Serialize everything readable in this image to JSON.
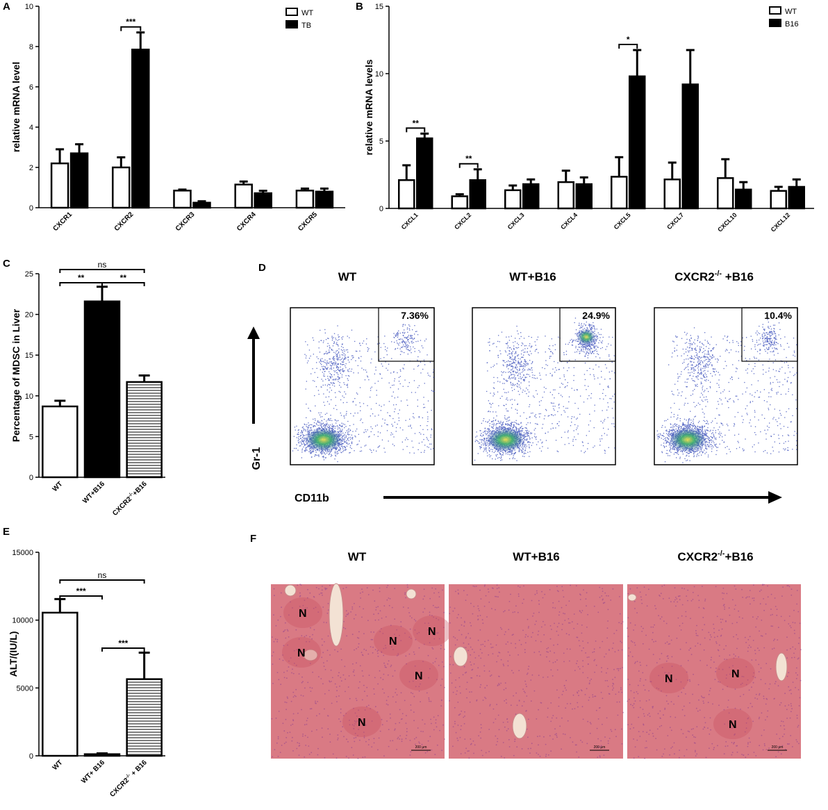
{
  "colors": {
    "open": "#ffffff",
    "filled": "#000000",
    "stroke": "#000000",
    "hist_bg": "#d97a84",
    "hist_nodule": "#c9505e",
    "flow_dot": "#2a3fb5"
  },
  "chart_data": [
    {
      "panel": "A",
      "type": "bar",
      "ylabel": "relative mRNA level",
      "ylim": [
        0,
        10
      ],
      "yticks": [
        "0",
        "2",
        "4",
        "6",
        "8",
        "10"
      ],
      "categories": [
        "CXCR1",
        "CXCR2",
        "CXCR3",
        "CXCR4",
        "CXCR5"
      ],
      "series": [
        {
          "name": "WT",
          "style": "open",
          "values": [
            2.2,
            2.0,
            0.85,
            1.15,
            0.85
          ],
          "errors": [
            0.7,
            0.5,
            0.05,
            0.15,
            0.1
          ]
        },
        {
          "name": "TB",
          "style": "filled",
          "values": [
            2.7,
            7.85,
            0.25,
            0.72,
            0.8
          ],
          "errors": [
            0.45,
            0.85,
            0.07,
            0.12,
            0.15
          ]
        }
      ],
      "significance": [
        {
          "category": 1,
          "label": "***"
        }
      ]
    },
    {
      "panel": "B",
      "type": "bar",
      "ylabel": "relative mRNA levels",
      "ylim": [
        0,
        15
      ],
      "yticks": [
        "0",
        "5",
        "10",
        "15"
      ],
      "categories": [
        "CXCL1",
        "CXCL2",
        "CXCL3",
        "CXCL4",
        "CXCL5",
        "CXCL7",
        "CXCL10",
        "CXCL12"
      ],
      "series": [
        {
          "name": "WT",
          "style": "open",
          "values": [
            2.1,
            0.9,
            1.35,
            1.95,
            2.35,
            2.15,
            2.25,
            1.3
          ],
          "errors": [
            1.1,
            0.15,
            0.35,
            0.85,
            1.45,
            1.25,
            1.4,
            0.3
          ]
        },
        {
          "name": "B16",
          "style": "filled",
          "values": [
            5.2,
            2.1,
            1.8,
            1.8,
            9.8,
            9.2,
            1.4,
            1.6
          ],
          "errors": [
            0.35,
            0.8,
            0.35,
            0.5,
            1.95,
            2.55,
            0.55,
            0.55
          ]
        }
      ],
      "significance": [
        {
          "category": 0,
          "label": "**"
        },
        {
          "category": 1,
          "label": "**"
        },
        {
          "category": 4,
          "label": "*"
        }
      ]
    },
    {
      "panel": "C",
      "type": "bar",
      "ylabel": "Percentage of MDSC in Liver",
      "ylim": [
        0,
        25
      ],
      "yticks": [
        "0",
        "5",
        "10",
        "15",
        "20",
        "25"
      ],
      "categories": [
        "WT",
        "WT+B16",
        "CXCR2-/-+B16"
      ],
      "values": [
        8.7,
        21.6,
        11.7
      ],
      "errors": [
        0.7,
        1.8,
        0.8
      ],
      "styles": [
        "open",
        "filled",
        "hatched"
      ],
      "significance": [
        {
          "from": 0,
          "to": 1,
          "label": "**"
        },
        {
          "from": 1,
          "to": 2,
          "label": "**"
        },
        {
          "from": 0,
          "to": 2,
          "label": "ns"
        }
      ]
    },
    {
      "panel": "E",
      "type": "bar",
      "ylabel": "ALT/(IU/L)",
      "ylim": [
        0,
        15000
      ],
      "yticks": [
        "0",
        "5000",
        "10000",
        "15000"
      ],
      "categories": [
        "WT",
        "WT+ B16",
        "CXCR2-/- + B16"
      ],
      "values": [
        10550,
        120,
        5650
      ],
      "errors": [
        1000,
        60,
        1950
      ],
      "styles": [
        "open",
        "open",
        "hatched"
      ],
      "significance": [
        {
          "from": 0,
          "to": 1,
          "label": "***"
        },
        {
          "from": 1,
          "to": 2,
          "label": "***"
        },
        {
          "from": 0,
          "to": 2,
          "label": "ns"
        }
      ]
    }
  ],
  "panels": {
    "A": {
      "letter": "A"
    },
    "B": {
      "letter": "B"
    },
    "C": {
      "letter": "C"
    },
    "D": {
      "letter": "D",
      "headers": [
        "WT",
        "WT+B16",
        "CXCR2",
        "-/-",
        " +B16"
      ],
      "gates": [
        "7.36%",
        "24.9%",
        "10.4%"
      ],
      "gate_values": [
        7.36,
        24.9,
        10.4
      ],
      "y_axis": "Gr-1",
      "x_axis": "CD11b"
    },
    "E": {
      "letter": "E"
    },
    "F": {
      "letter": "F",
      "headers": [
        "WT",
        "WT+B16",
        "CXCR2",
        "-/-",
        "+B16"
      ],
      "nodule_mark": "N",
      "scale_label": "200 μm"
    }
  }
}
